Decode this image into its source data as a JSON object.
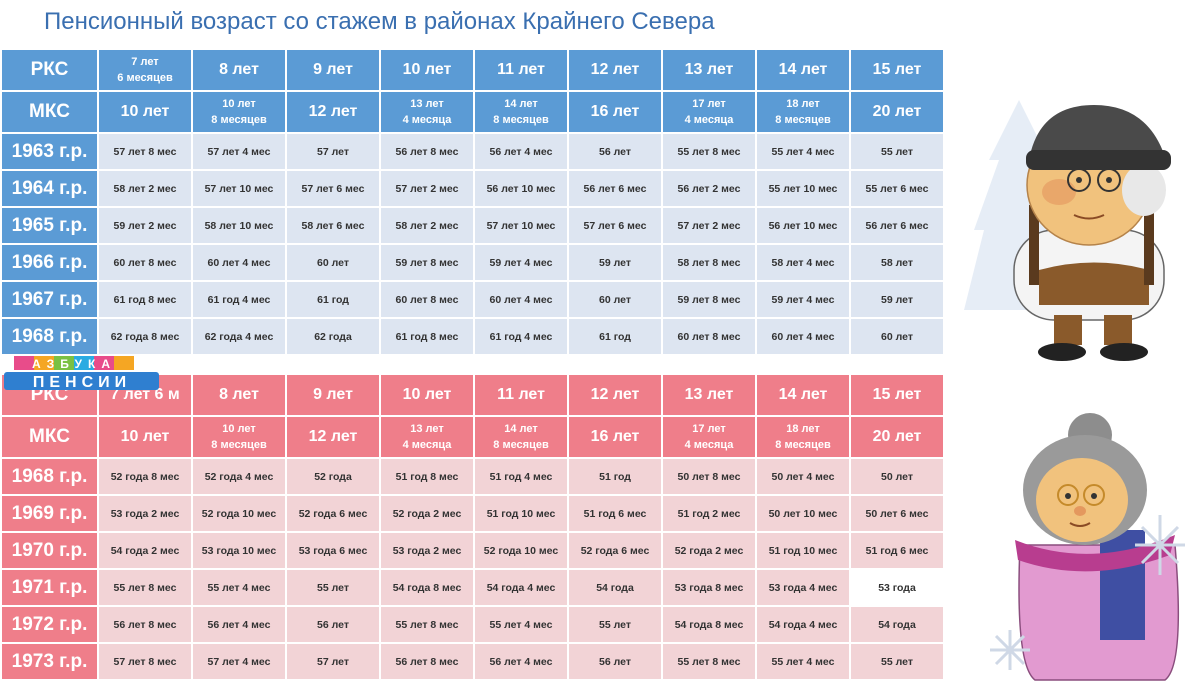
{
  "title": "Пенсионный возраст со стажем в районах Крайнего Севера",
  "logo": {
    "line1": "АЗБУКА",
    "line2": "ПЕНСИИ"
  },
  "colors": {
    "men_header": "#5b9bd5",
    "men_cell": "#dde5f1",
    "women_header": "#ef7e8a",
    "women_cell": "#f2d3d6"
  },
  "men": {
    "rks_label": "РКС",
    "mks_label": "МКС",
    "rks": [
      [
        "7 лет",
        "6 месяцев"
      ],
      [
        "8 лет"
      ],
      [
        "9 лет"
      ],
      [
        "10 лет"
      ],
      [
        "11 лет"
      ],
      [
        "12 лет"
      ],
      [
        "13 лет"
      ],
      [
        "14 лет"
      ],
      [
        "15 лет"
      ]
    ],
    "mks": [
      [
        "10 лет"
      ],
      [
        "10 лет",
        "8 месяцев"
      ],
      [
        "12 лет"
      ],
      [
        "13 лет",
        "4 месяца"
      ],
      [
        "14 лет",
        "8 месяцев"
      ],
      [
        "16 лет"
      ],
      [
        "17 лет",
        "4 месяца"
      ],
      [
        "18 лет",
        "8 месяцев"
      ],
      [
        "20 лет"
      ]
    ],
    "rows": [
      {
        "year": "1963 г.р.",
        "values": [
          "57 лет 8 мес",
          "57 лет 4 мес",
          "57 лет",
          "56 лет 8 мес",
          "56 лет 4 мес",
          "56 лет",
          "55 лет 8 мес",
          "55 лет 4 мес",
          "55 лет"
        ]
      },
      {
        "year": "1964 г.р.",
        "values": [
          "58 лет 2 мес",
          "57 лет 10 мес",
          "57 лет 6 мес",
          "57 лет 2 мес",
          "56 лет 10 мес",
          "56 лет 6 мес",
          "56 лет 2 мес",
          "55 лет 10 мес",
          "55 лет 6 мес"
        ]
      },
      {
        "year": "1965 г.р.",
        "values": [
          "59 лет 2 мес",
          "58 лет 10 мес",
          "58 лет 6 мес",
          "58 лет 2 мес",
          "57 лет 10 мес",
          "57 лет 6 мес",
          "57 лет 2 мес",
          "56 лет 10 мес",
          "56 лет 6 мес"
        ]
      },
      {
        "year": "1966 г.р.",
        "values": [
          "60 лет 8 мес",
          "60 лет 4 мес",
          "60 лет",
          "59 лет 8 мес",
          "59 лет 4 мес",
          "59 лет",
          "58 лет 8 мес",
          "58 лет 4 мес",
          "58 лет"
        ]
      },
      {
        "year": "1967 г.р.",
        "values": [
          "61 год 8 мес",
          "61 год 4 мес",
          "61 год",
          "60 лет 8 мес",
          "60 лет 4 мес",
          "60 лет",
          "59 лет 8 мес",
          "59 лет 4 мес",
          "59 лет"
        ]
      },
      {
        "year": "1968 г.р.",
        "values": [
          "62 года 8 мес",
          "62 года 4 мес",
          "62 года",
          "61 год 8 мес",
          "61 год 4 мес",
          "61 год",
          "60 лет 8 мес",
          "60 лет 4 мес",
          "60 лет"
        ]
      }
    ]
  },
  "women": {
    "rks_label": "РКС",
    "mks_label": "МКС",
    "rks": [
      [
        "7 лет  6 м"
      ],
      [
        "8 лет"
      ],
      [
        "9 лет"
      ],
      [
        "10 лет"
      ],
      [
        "11 лет"
      ],
      [
        "12 лет"
      ],
      [
        "13 лет"
      ],
      [
        "14 лет"
      ],
      [
        "15 лет"
      ]
    ],
    "mks": [
      [
        "10 лет"
      ],
      [
        "10 лет",
        "8 месяцев"
      ],
      [
        "12 лет"
      ],
      [
        "13 лет",
        "4 месяца"
      ],
      [
        "14 лет",
        "8 месяцев"
      ],
      [
        "16 лет"
      ],
      [
        "17 лет",
        "4 месяца"
      ],
      [
        "18 лет",
        "8 месяцев"
      ],
      [
        "20 лет"
      ]
    ],
    "rows": [
      {
        "year": "1968 г.р.",
        "values": [
          "52 года 8 мес",
          "52 года 4 мес",
          "52 года",
          "51 год 8 мес",
          "51 год 4 мес",
          "51 год",
          "50 лет 8 мес",
          "50 лет 4 мес",
          "50 лет"
        ]
      },
      {
        "year": "1969 г.р.",
        "values": [
          "53 года 2 мес",
          "52 года 10 мес",
          "52 года 6 мес",
          "52 года 2 мес",
          "51 год 10 мес",
          "51 год 6 мес",
          "51 год 2 мес",
          "50 лет 10 мес",
          "50 лет 6 мес"
        ]
      },
      {
        "year": "1970 г.р.",
        "values": [
          "54 года 2 мес",
          "53 года 10 мес",
          "53 года 6 мес",
          "53 года 2 мес",
          "52 года 10 мес",
          "52 года 6 мес",
          "52 года 2 мес",
          "51 год 10 мес",
          "51 год 6 мес"
        ]
      },
      {
        "year": "1971 г.р.",
        "values": [
          "55 лет 8 мес",
          "55 лет 4 мес",
          "55 лет",
          "54 года 8 мес",
          "54 года 4 мес",
          "54 года",
          "53 года 8 мес",
          "53 года 4 мес",
          "53 года"
        ]
      },
      {
        "year": "1972 г.р.",
        "values": [
          "56 лет 8 мес",
          "56 лет 4 мес",
          "56 лет",
          "55 лет 8 мес",
          "55 лет 4 мес",
          "55 лет",
          "54 года 8 мес",
          "54 года 4 мес",
          "54 года"
        ]
      },
      {
        "year": "1973 г.р.",
        "values": [
          "57 лет 8 мес",
          "57 лет 4 мес",
          "57 лет",
          "56 лет 8 мес",
          "56 лет 4 мес",
          "56 лет",
          "55 лет 8 мес",
          "55 лет 4 мес",
          "55 лет"
        ]
      }
    ]
  }
}
